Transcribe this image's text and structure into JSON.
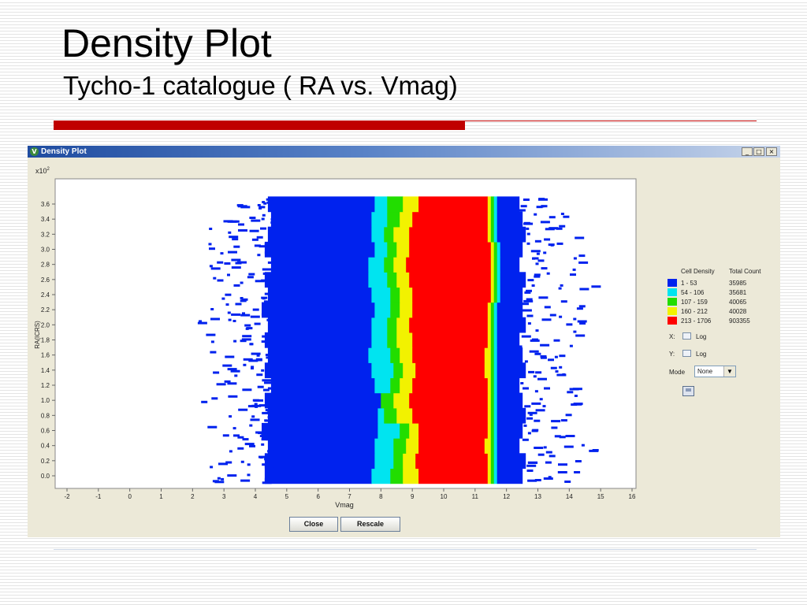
{
  "slide": {
    "title": "Density Plot",
    "subtitle": "Tycho-1 catalogue ( RA vs. Vmag)"
  },
  "window": {
    "title": "Density Plot",
    "icon": "app-v-icon",
    "controls": [
      "minimize-icon",
      "maximize-icon",
      "close-icon"
    ]
  },
  "chart_data": {
    "type": "heatmap",
    "xlabel": "Vmag",
    "ylabel": "RA(ICRS)",
    "y_scale_label": "x10",
    "y_scale_exponent": "2",
    "xlim": [
      -2,
      16
    ],
    "ylim": [
      0,
      3.6
    ],
    "xticks": [
      "-2",
      "-1",
      "0",
      "1",
      "2",
      "3",
      "4",
      "5",
      "6",
      "7",
      "8",
      "9",
      "10",
      "11",
      "12",
      "13",
      "14",
      "15",
      "16"
    ],
    "yticks": [
      "0.0",
      "0.2",
      "0.4",
      "0.6",
      "0.8",
      "1.0",
      "1.2",
      "1.4",
      "1.6",
      "1.8",
      "2.0",
      "2.2",
      "2.4",
      "2.6",
      "2.8",
      "3.0",
      "3.2",
      "3.4",
      "3.6"
    ],
    "grid": false,
    "legend_position": "right",
    "legend": {
      "header_density": "Cell Density",
      "header_count": "Total Count",
      "entries": [
        {
          "range": "1 - 53",
          "count": "35985",
          "color": "#0022ee"
        },
        {
          "range": "54 - 106",
          "count": "35681",
          "color": "#00e4f0"
        },
        {
          "range": "107 - 159",
          "count": "40065",
          "color": "#22dd00"
        },
        {
          "range": "160 - 212",
          "count": "40028",
          "color": "#f2f200"
        },
        {
          "range": "213 - 1706",
          "count": "903355",
          "color": "#ff0000"
        }
      ]
    },
    "bands": {
      "ra": [
        0.0,
        0.2,
        0.4,
        0.6,
        0.8,
        1.0,
        1.2,
        1.4,
        1.6,
        1.8,
        2.0,
        2.2,
        2.4,
        2.6,
        2.8,
        3.0,
        3.2,
        3.4,
        3.6
      ],
      "blue_start": [
        4.3,
        4.3,
        4.4,
        4.2,
        4.4,
        4.3,
        4.5,
        4.3,
        4.4,
        4.3,
        4.4,
        4.2,
        4.4,
        4.3,
        4.5,
        4.3,
        4.4,
        4.5,
        4.4
      ],
      "cyan_start": [
        7.7,
        7.8,
        7.8,
        7.9,
        7.9,
        8.0,
        7.8,
        7.7,
        7.6,
        7.7,
        7.7,
        7.8,
        7.7,
        7.6,
        7.6,
        7.8,
        7.7,
        7.7,
        7.8
      ],
      "green_start": [
        8.3,
        8.4,
        8.4,
        8.6,
        8.1,
        8.0,
        8.3,
        8.4,
        8.3,
        8.2,
        8.2,
        8.3,
        8.3,
        8.2,
        8.1,
        8.2,
        8.1,
        8.2,
        8.2
      ],
      "yellow_start": [
        8.7,
        8.7,
        8.8,
        8.9,
        8.5,
        8.4,
        8.6,
        8.7,
        8.6,
        8.5,
        8.5,
        8.6,
        8.6,
        8.5,
        8.4,
        8.5,
        8.4,
        8.6,
        8.7
      ],
      "red_start": [
        9.2,
        9.1,
        9.2,
        9.2,
        9.0,
        8.9,
        9.0,
        9.1,
        9.0,
        9.0,
        8.9,
        9.0,
        9.0,
        8.9,
        8.8,
        8.9,
        8.9,
        9.0,
        9.2
      ],
      "red_end": [
        11.4,
        11.4,
        11.3,
        11.4,
        11.4,
        11.4,
        11.4,
        11.3,
        11.3,
        11.4,
        11.4,
        11.4,
        11.5,
        11.5,
        11.5,
        11.5,
        11.4,
        11.4,
        11.4
      ],
      "yellow_end": [
        11.5,
        11.5,
        11.5,
        11.5,
        11.5,
        11.5,
        11.5,
        11.5,
        11.5,
        11.5,
        11.5,
        11.5,
        11.6,
        11.6,
        11.6,
        11.6,
        11.5,
        11.5,
        11.5
      ],
      "green_end": [
        11.6,
        11.6,
        11.6,
        11.6,
        11.6,
        11.6,
        11.6,
        11.6,
        11.6,
        11.6,
        11.6,
        11.6,
        11.7,
        11.7,
        11.7,
        11.7,
        11.6,
        11.6,
        11.6
      ],
      "cyan_end": [
        11.7,
        11.7,
        11.7,
        11.7,
        11.7,
        11.7,
        11.7,
        11.7,
        11.7,
        11.7,
        11.7,
        11.7,
        11.8,
        11.8,
        11.8,
        11.8,
        11.7,
        11.7,
        11.7
      ],
      "blue_end": [
        12.5,
        12.6,
        12.4,
        12.5,
        12.6,
        12.5,
        12.4,
        12.6,
        12.5,
        12.4,
        12.6,
        12.5,
        12.5,
        12.6,
        12.4,
        12.5,
        12.6,
        12.5,
        12.4
      ],
      "sparse_left": [
        2.6,
        2.5,
        2.7,
        2.4,
        2.6,
        2.2,
        2.4,
        2.6,
        2.5,
        2.3,
        2.0,
        2.4,
        2.2,
        2.6,
        2.1,
        2.3,
        2.5,
        2.7,
        3.2
      ],
      "sparse_right": [
        14.3,
        14.6,
        14.8,
        14.4,
        14.1,
        14.2,
        14.5,
        14.6,
        14.4,
        14.7,
        14.5,
        14.4,
        15.1,
        14.9,
        14.8,
        14.5,
        14.2,
        13.9,
        13.3
      ]
    }
  },
  "panel": {
    "x_label": "X:",
    "y_label": "Y:",
    "log_label": "Log",
    "mode_label": "Mode",
    "mode_value": "None",
    "save_icon": "save-icon"
  },
  "buttons": {
    "close_label": "Close",
    "rescale_label": "Rescale"
  }
}
